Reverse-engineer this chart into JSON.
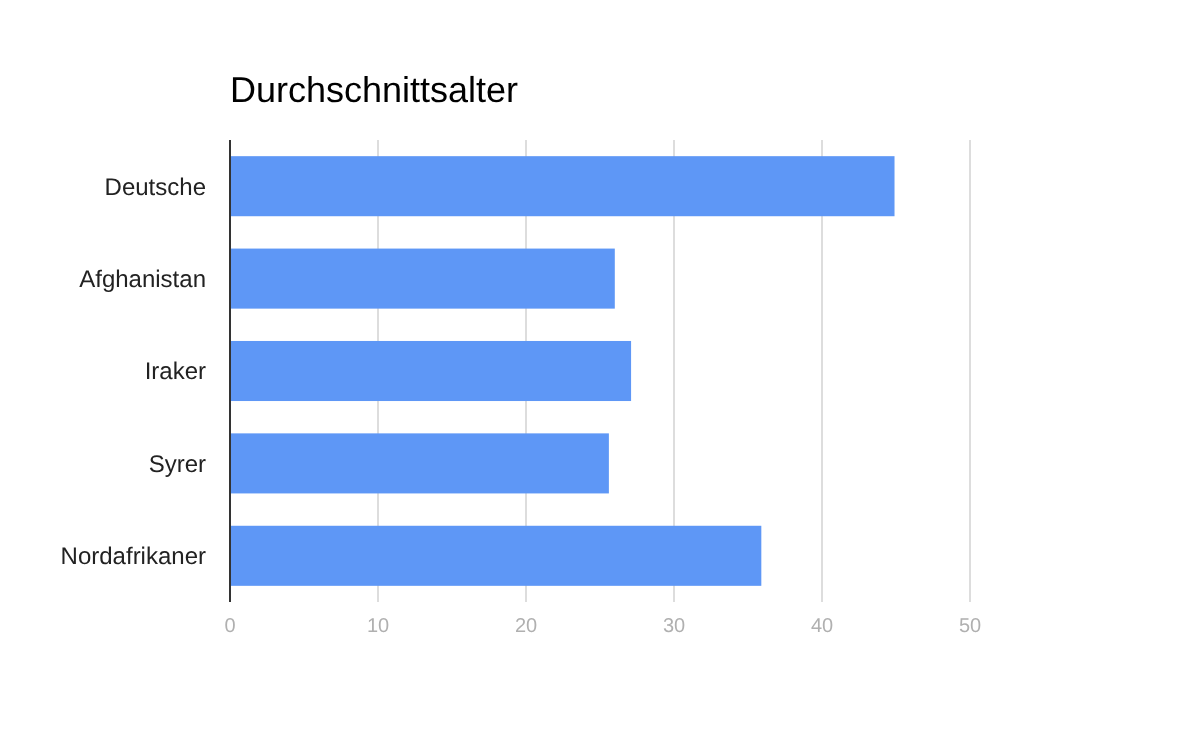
{
  "chart_data": {
    "type": "bar",
    "orientation": "horizontal",
    "title": "Durchschnittsalter",
    "categories": [
      "Deutsche",
      "Afghanistan",
      "Iraker",
      "Syrer",
      "Nordafrikaner"
    ],
    "values": [
      44.9,
      26.0,
      27.1,
      25.6,
      35.9
    ],
    "color": "#5e97f6",
    "xlim": [
      0,
      50
    ],
    "xticks": [
      0,
      10,
      20,
      30,
      40,
      50
    ],
    "grid": "x"
  }
}
